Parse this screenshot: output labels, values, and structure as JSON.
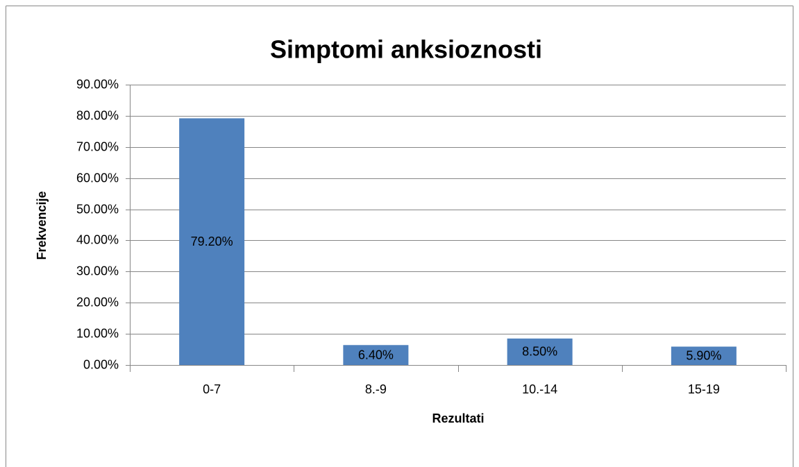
{
  "chart_data": {
    "type": "bar",
    "title": "Simptomi anksioznosti",
    "x_label": "Rezultati",
    "y_label": "Frekvencije",
    "categories": [
      "0-7",
      "8.-9",
      "10.-14",
      "15-19"
    ],
    "values": [
      79.2,
      6.4,
      8.5,
      5.9
    ],
    "value_labels": [
      "79.20%",
      "6.40%",
      "8.50%",
      "5.90%"
    ],
    "color": "#4f81bd",
    "ylim": [
      0,
      90
    ],
    "yticks": [
      {
        "value": 0,
        "label": "0.00%"
      },
      {
        "value": 10,
        "label": "10.00%"
      },
      {
        "value": 20,
        "label": "20.00%"
      },
      {
        "value": 30,
        "label": "30.00%"
      },
      {
        "value": 40,
        "label": "40.00%"
      },
      {
        "value": 50,
        "label": "50.00%"
      },
      {
        "value": 60,
        "label": "60.00%"
      },
      {
        "value": 70,
        "label": "70.00%"
      },
      {
        "value": 80,
        "label": "80.00%"
      },
      {
        "value": 90,
        "label": "90.00%"
      }
    ],
    "grid": true
  }
}
